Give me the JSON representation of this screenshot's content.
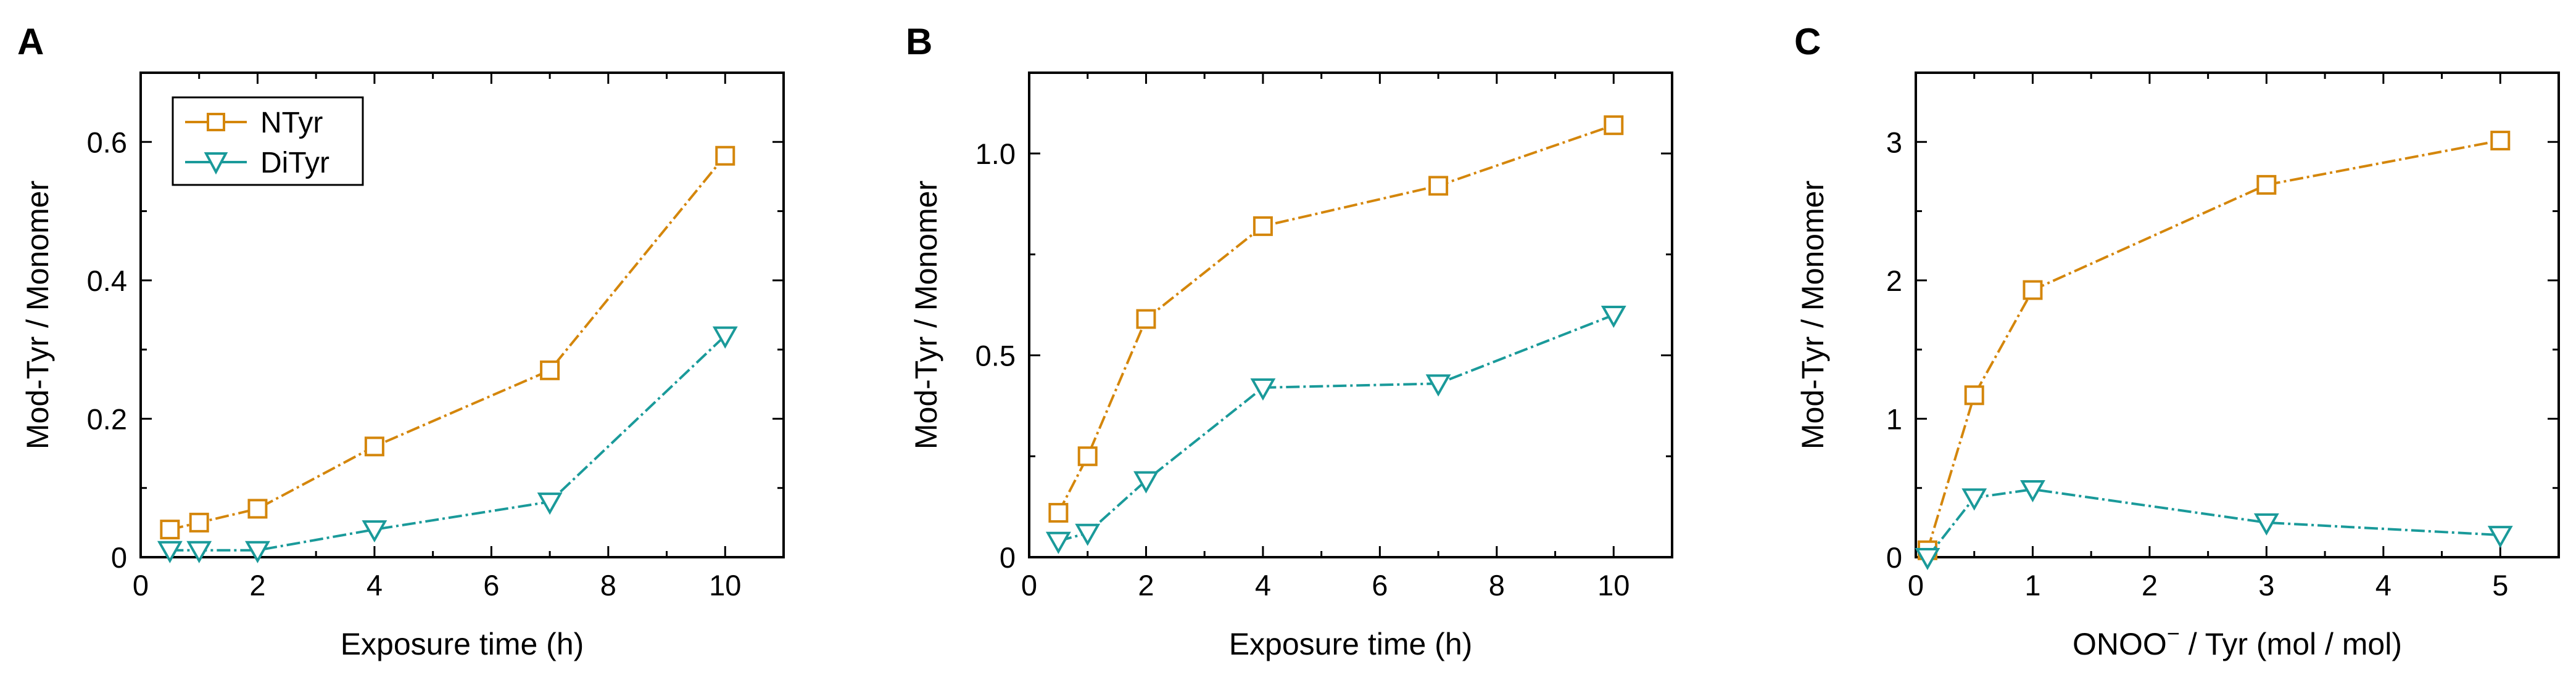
{
  "colors": {
    "ntyr": "#D4860B",
    "dityr": "#1A9A9A",
    "axis": "#000000"
  },
  "legend": {
    "items": [
      "NTyr",
      "DiTyr"
    ],
    "placement": "top-left"
  },
  "chart_data": [
    {
      "panel": "A",
      "type": "line",
      "xlabel": "Exposure time (h)",
      "ylabel": "Mod-Tyr / Monomer",
      "xlim": [
        0,
        11
      ],
      "ylim": [
        0,
        0.7
      ],
      "xticks": [
        "0",
        "2",
        "4",
        "6",
        "8",
        "10"
      ],
      "yticks": [
        "0",
        "0.2",
        "0.4",
        "0.6"
      ],
      "series": [
        {
          "name": "NTyr",
          "marker": "square",
          "x": [
            0.5,
            1,
            2,
            4,
            7,
            10
          ],
          "values": [
            0.04,
            0.05,
            0.07,
            0.16,
            0.27,
            0.58
          ]
        },
        {
          "name": "DiTyr",
          "marker": "triangle-down",
          "x": [
            0.5,
            1,
            2,
            4,
            7,
            10
          ],
          "values": [
            0.01,
            0.01,
            0.01,
            0.04,
            0.08,
            0.32
          ]
        }
      ]
    },
    {
      "panel": "B",
      "type": "line",
      "xlabel": "Exposure time (h)",
      "ylabel": "Mod-Tyr / Monomer",
      "xlim": [
        0,
        11
      ],
      "ylim": [
        0,
        1.2
      ],
      "xticks": [
        "0",
        "2",
        "4",
        "6",
        "8",
        "10"
      ],
      "yticks": [
        "0",
        "0.5",
        "1.0"
      ],
      "series": [
        {
          "name": "NTyr",
          "marker": "square",
          "x": [
            0.5,
            1,
            2,
            4,
            7,
            10
          ],
          "values": [
            0.11,
            0.25,
            0.59,
            0.82,
            0.92,
            1.07
          ]
        },
        {
          "name": "DiTyr",
          "marker": "triangle-down",
          "x": [
            0.5,
            1,
            2,
            4,
            7,
            10
          ],
          "values": [
            0.04,
            0.06,
            0.19,
            0.42,
            0.43,
            0.6
          ]
        }
      ]
    },
    {
      "panel": "C",
      "type": "line",
      "xlabel": "ONOO",
      "xlabel_sup": "−",
      "xlabel_rest": " / Tyr (mol / mol)",
      "ylabel": "Mod-Tyr / Monomer",
      "xlim": [
        0,
        5.5
      ],
      "ylim": [
        0,
        3.5
      ],
      "xticks": [
        "0",
        "1",
        "2",
        "3",
        "4",
        "5"
      ],
      "yticks": [
        "0",
        "1",
        "2",
        "3"
      ],
      "series": [
        {
          "name": "NTyr",
          "marker": "square",
          "x": [
            0.1,
            0.5,
            1,
            3,
            5
          ],
          "values": [
            0.05,
            1.17,
            1.93,
            2.69,
            3.01
          ]
        },
        {
          "name": "DiTyr",
          "marker": "triangle-down",
          "x": [
            0.1,
            0.5,
            1,
            3,
            5
          ],
          "values": [
            0.0,
            0.43,
            0.49,
            0.25,
            0.16
          ]
        }
      ]
    }
  ]
}
